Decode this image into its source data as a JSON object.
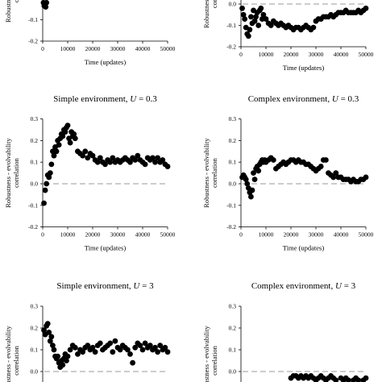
{
  "chart_data": [
    {
      "type": "scatter",
      "id": "top-left",
      "title": "",
      "xlabel": "Time (updates)",
      "ylabel": [
        "Robustness - evolvability",
        "correlation"
      ],
      "xlim": [
        0,
        50000
      ],
      "ylim": [
        -0.2,
        0.3
      ],
      "xticks": [
        0,
        10000,
        20000,
        30000,
        40000,
        50000
      ],
      "xtick_labels": [
        "0",
        "10000",
        "20000",
        "30000",
        "40000",
        "50000"
      ],
      "yticks": [
        -0.2,
        -0.1
      ],
      "ytick_labels": [
        "-0.2",
        "-0.1"
      ],
      "zero_line": true,
      "x": [
        300,
        600,
        900,
        1200,
        1500
      ],
      "y": [
        -0.02,
        -0.035,
        -0.03,
        -0.04,
        -0.02
      ]
    },
    {
      "type": "scatter",
      "id": "top-right",
      "title": "",
      "xlabel": "Time (updates)",
      "ylabel": [
        "Robustness - evolvability",
        "correlation"
      ],
      "xlim": [
        0,
        50000
      ],
      "ylim": [
        -0.2,
        0.3
      ],
      "xticks": [
        0,
        10000,
        20000,
        30000,
        40000,
        50000
      ],
      "xtick_labels": [
        "0",
        "10000",
        "20000",
        "30000",
        "40000",
        "50000"
      ],
      "yticks": [
        -0.2,
        -0.1,
        0.0
      ],
      "ytick_labels": [
        "-0.2",
        "-0.1",
        "0.0"
      ],
      "zero_line": true,
      "x": [
        500,
        1000,
        1500,
        2000,
        2500,
        3000,
        3500,
        4000,
        4500,
        5000,
        5500,
        6000,
        6500,
        7000,
        7500,
        8000,
        8500,
        9000,
        10000,
        11000,
        12000,
        13000,
        14000,
        15000,
        16000,
        17000,
        18000,
        19000,
        20000,
        21000,
        22000,
        23000,
        24000,
        25000,
        26000,
        27000,
        28000,
        29000,
        30000,
        31000,
        32000,
        33000,
        34000,
        35000,
        36000,
        37000,
        38000,
        39000,
        40000,
        41000,
        42000,
        43000,
        44000,
        45000,
        46000,
        47000,
        48000,
        49000,
        50000
      ],
      "y": [
        -0.02,
        -0.05,
        -0.07,
        -0.11,
        -0.14,
        -0.15,
        -0.12,
        -0.06,
        -0.09,
        -0.03,
        -0.08,
        -0.06,
        -0.04,
        -0.1,
        -0.03,
        -0.02,
        -0.07,
        -0.05,
        -0.07,
        -0.09,
        -0.1,
        -0.08,
        -0.09,
        -0.1,
        -0.09,
        -0.1,
        -0.11,
        -0.1,
        -0.11,
        -0.12,
        -0.11,
        -0.11,
        -0.12,
        -0.11,
        -0.1,
        -0.11,
        -0.12,
        -0.11,
        -0.08,
        -0.07,
        -0.07,
        -0.06,
        -0.06,
        -0.06,
        -0.05,
        -0.06,
        -0.05,
        -0.04,
        -0.04,
        -0.04,
        -0.03,
        -0.04,
        -0.04,
        -0.04,
        -0.04,
        -0.03,
        -0.04,
        -0.03,
        -0.02
      ]
    },
    {
      "type": "scatter",
      "id": "middle-left",
      "title": "Simple environment, U = 0.3",
      "xlabel": "Time (updates)",
      "ylabel": [
        "Robustness - evolvability",
        "correlation"
      ],
      "xlim": [
        0,
        50000
      ],
      "ylim": [
        -0.2,
        0.3
      ],
      "xticks": [
        0,
        10000,
        20000,
        30000,
        40000,
        50000
      ],
      "xtick_labels": [
        "0",
        "10000",
        "20000",
        "30000",
        "40000",
        "50000"
      ],
      "yticks": [
        -0.2,
        -0.1,
        0.0,
        0.1,
        0.2,
        0.3
      ],
      "ytick_labels": [
        "-0.2",
        "-0.1",
        "0.0",
        "0.1",
        "0.2",
        "0.3"
      ],
      "zero_line": true,
      "x": [
        500,
        1000,
        1500,
        2000,
        2500,
        3000,
        3500,
        4000,
        4500,
        5000,
        5500,
        6000,
        6500,
        7000,
        7500,
        8000,
        8500,
        9000,
        9500,
        10000,
        10500,
        11000,
        11500,
        12000,
        12500,
        13000,
        14000,
        15000,
        16000,
        17000,
        18000,
        19000,
        20000,
        21000,
        22000,
        23000,
        24000,
        25000,
        26000,
        27000,
        28000,
        29000,
        30000,
        31000,
        32000,
        33000,
        34000,
        35000,
        36000,
        37000,
        38000,
        39000,
        40000,
        41000,
        42000,
        43000,
        44000,
        45000,
        46000,
        47000,
        48000,
        49000,
        50000
      ],
      "y": [
        -0.09,
        -0.03,
        0.0,
        0.04,
        0.03,
        0.05,
        0.09,
        0.15,
        0.13,
        0.17,
        0.15,
        0.2,
        0.18,
        0.21,
        0.23,
        0.22,
        0.25,
        0.24,
        0.26,
        0.27,
        0.21,
        0.19,
        0.24,
        0.22,
        0.23,
        0.21,
        0.15,
        0.14,
        0.13,
        0.15,
        0.12,
        0.14,
        0.13,
        0.11,
        0.1,
        0.12,
        0.1,
        0.09,
        0.11,
        0.1,
        0.12,
        0.1,
        0.11,
        0.1,
        0.11,
        0.12,
        0.11,
        0.1,
        0.12,
        0.11,
        0.13,
        0.11,
        0.1,
        0.09,
        0.12,
        0.11,
        0.12,
        0.1,
        0.12,
        0.1,
        0.11,
        0.09,
        0.08
      ]
    },
    {
      "type": "scatter",
      "id": "middle-right",
      "title": "Complex environment, U = 0.3",
      "xlabel": "Time (updates)",
      "ylabel": [
        "Robustness - evolvability",
        "correlation"
      ],
      "xlim": [
        0,
        50000
      ],
      "ylim": [
        -0.2,
        0.3
      ],
      "xticks": [
        0,
        10000,
        20000,
        30000,
        40000,
        50000
      ],
      "xtick_labels": [
        "0",
        "10000",
        "20000",
        "30000",
        "40000",
        "50000"
      ],
      "yticks": [
        -0.2,
        -0.1,
        0.0,
        0.1,
        0.2,
        0.3
      ],
      "ytick_labels": [
        "-0.2",
        "-0.1",
        "0.0",
        "0.1",
        "0.2",
        "0.3"
      ],
      "zero_line": true,
      "x": [
        500,
        1000,
        1500,
        2000,
        2500,
        3000,
        3500,
        4000,
        4500,
        5000,
        5500,
        6000,
        6500,
        7000,
        7500,
        8000,
        8500,
        9000,
        9500,
        10000,
        11000,
        12000,
        13000,
        14000,
        15000,
        16000,
        17000,
        18000,
        19000,
        20000,
        21000,
        22000,
        23000,
        24000,
        25000,
        26000,
        27000,
        28000,
        29000,
        30000,
        31000,
        32000,
        33000,
        34000,
        35000,
        36000,
        37000,
        38000,
        39000,
        40000,
        41000,
        42000,
        43000,
        44000,
        45000,
        46000,
        47000,
        48000,
        49000,
        50000
      ],
      "y": [
        0.03,
        0.04,
        0.03,
        0.02,
        0.0,
        -0.02,
        -0.04,
        -0.06,
        -0.03,
        0.05,
        0.02,
        0.07,
        0.08,
        0.06,
        0.09,
        0.1,
        0.11,
        0.1,
        0.11,
        0.1,
        0.11,
        0.12,
        0.11,
        0.07,
        0.08,
        0.09,
        0.1,
        0.09,
        0.1,
        0.11,
        0.11,
        0.1,
        0.11,
        0.1,
        0.1,
        0.09,
        0.09,
        0.08,
        0.07,
        0.06,
        0.07,
        0.08,
        0.11,
        0.11,
        0.05,
        0.04,
        0.03,
        0.05,
        0.03,
        0.03,
        0.02,
        0.02,
        0.02,
        0.01,
        0.02,
        0.01,
        0.01,
        0.02,
        0.02,
        0.03
      ]
    },
    {
      "type": "scatter",
      "id": "bottom-left",
      "title": "Simple environment, U = 3",
      "xlabel": "",
      "ylabel": [
        "Robustness - evolvability",
        "correlation"
      ],
      "xlim": [
        0,
        50000
      ],
      "ylim": [
        -0.2,
        0.3
      ],
      "xticks": [],
      "xtick_labels": [],
      "yticks": [
        0.0,
        0.1,
        0.2,
        0.3
      ],
      "ytick_labels": [
        "0.0",
        "0.1",
        "0.2",
        "0.3"
      ],
      "zero_line": true,
      "x": [
        500,
        1000,
        1500,
        2000,
        2500,
        3000,
        3500,
        4000,
        4500,
        5000,
        5500,
        6000,
        6500,
        7000,
        7500,
        8000,
        8500,
        9000,
        9500,
        10000,
        11000,
        12000,
        13000,
        14000,
        15000,
        16000,
        17000,
        18000,
        19000,
        20000,
        21000,
        22000,
        23000,
        24000,
        25000,
        26000,
        27000,
        28000,
        29000,
        30000,
        31000,
        32000,
        33000,
        34000,
        35000,
        36000,
        37000,
        38000,
        39000,
        40000,
        41000,
        42000,
        43000,
        44000,
        45000,
        46000,
        47000,
        48000,
        49000,
        50000
      ],
      "y": [
        0.19,
        0.17,
        0.21,
        0.22,
        0.18,
        0.14,
        0.16,
        0.12,
        0.1,
        0.07,
        0.06,
        0.07,
        0.04,
        0.02,
        0.05,
        0.03,
        0.06,
        0.08,
        0.05,
        0.07,
        0.1,
        0.12,
        0.11,
        0.08,
        0.1,
        0.09,
        0.11,
        0.12,
        0.1,
        0.11,
        0.09,
        0.12,
        0.13,
        0.1,
        0.11,
        0.12,
        0.13,
        0.09,
        0.14,
        0.11,
        0.1,
        0.12,
        0.11,
        0.1,
        0.08,
        0.04,
        0.11,
        0.13,
        0.12,
        0.1,
        0.13,
        0.11,
        0.12,
        0.1,
        0.11,
        0.09,
        0.12,
        0.1,
        0.11,
        0.09
      ]
    },
    {
      "type": "scatter",
      "id": "bottom-right",
      "title": "Complex environment, U = 3",
      "xlabel": "",
      "ylabel": [
        "Robustness - evolvability",
        "correlation"
      ],
      "xlim": [
        0,
        50000
      ],
      "ylim": [
        -0.2,
        0.3
      ],
      "xticks": [],
      "xtick_labels": [],
      "yticks": [
        0.0,
        0.1,
        0.2,
        0.3
      ],
      "ytick_labels": [
        "0.0",
        "0.1",
        "0.2",
        "0.3"
      ],
      "zero_line": true,
      "x": [
        20000,
        21000,
        22000,
        23000,
        24000,
        25000,
        26000,
        27000,
        28000,
        29000,
        30000,
        31000,
        32000,
        33000,
        34000,
        35000,
        36000,
        37000,
        38000,
        39000,
        40000,
        41000,
        42000,
        43000,
        44000,
        45000,
        46000,
        47000,
        48000,
        49000,
        50000
      ],
      "y": [
        -0.03,
        -0.02,
        -0.02,
        -0.03,
        -0.02,
        -0.03,
        -0.02,
        -0.03,
        -0.02,
        -0.03,
        -0.04,
        -0.03,
        -0.02,
        -0.03,
        -0.04,
        -0.03,
        -0.02,
        -0.03,
        -0.04,
        -0.05,
        -0.03,
        -0.04,
        -0.03,
        -0.04,
        -0.05,
        -0.04,
        -0.03,
        -0.04,
        -0.05,
        -0.04,
        -0.03
      ]
    }
  ]
}
